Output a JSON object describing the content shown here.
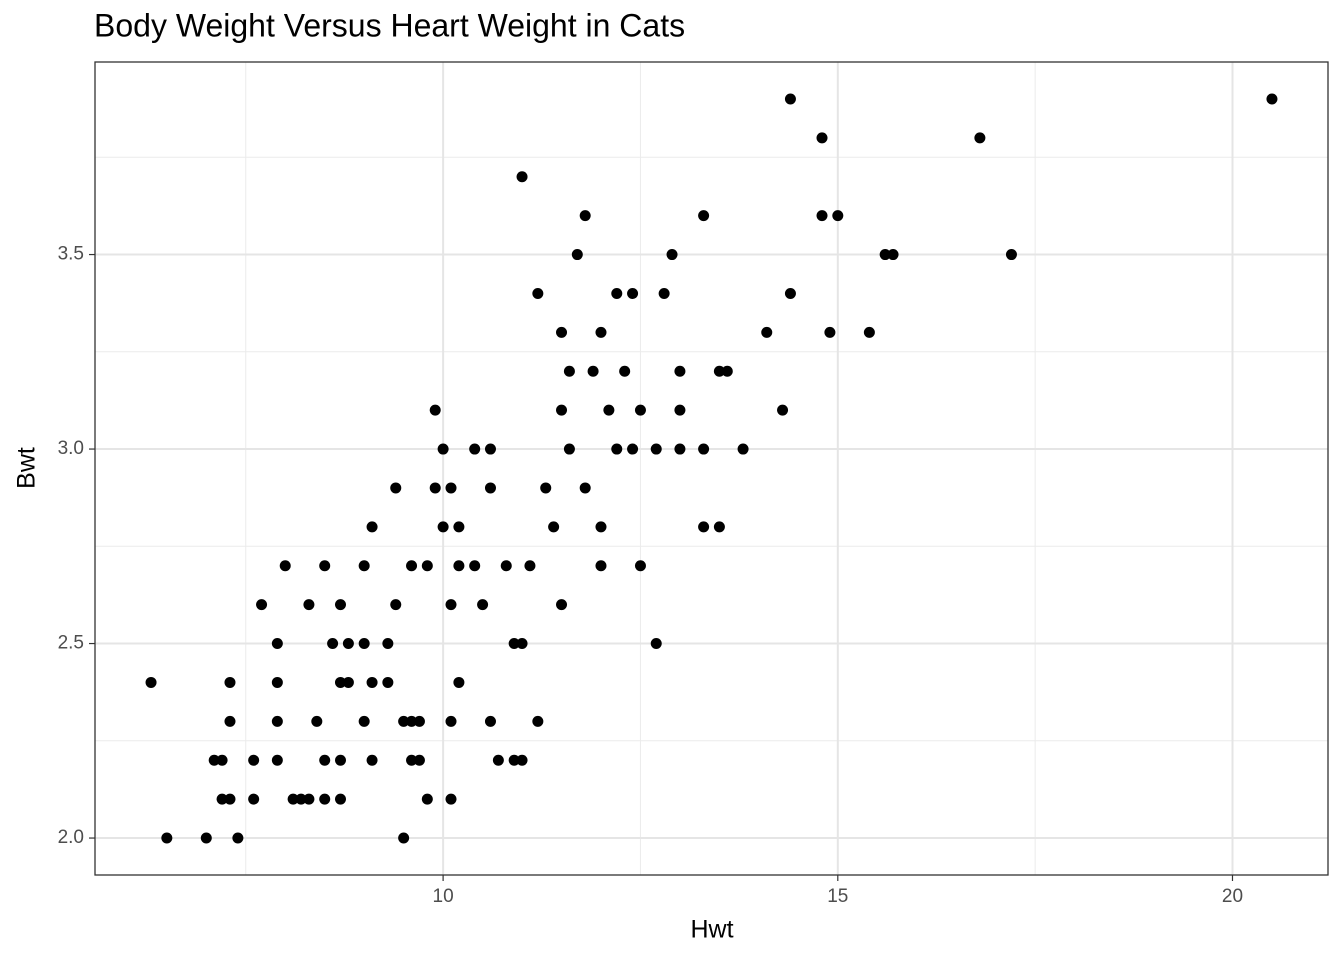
{
  "chart_data": {
    "type": "scatter",
    "title": "Body Weight Versus Heart Weight in Cats",
    "x_label": "Hwt",
    "y_label": "Bwt",
    "x": [
      6.5,
      7.0,
      7.4,
      9.5,
      7.2,
      7.3,
      7.6,
      8.1,
      8.2,
      8.3,
      8.5,
      8.7,
      9.8,
      10.1,
      7.1,
      7.2,
      7.6,
      7.9,
      8.5,
      8.7,
      9.1,
      9.6,
      9.7,
      10.7,
      10.9,
      11.0,
      7.3,
      7.9,
      8.4,
      9.0,
      9.5,
      9.6,
      9.7,
      10.1,
      10.6,
      11.2,
      6.3,
      7.3,
      7.9,
      8.7,
      8.8,
      9.1,
      9.3,
      10.2,
      7.9,
      8.6,
      8.8,
      9.0,
      9.3,
      10.9,
      11.0,
      12.7,
      7.7,
      8.3,
      8.7,
      9.4,
      10.1,
      10.5,
      11.5,
      8.0,
      8.5,
      9.0,
      9.6,
      9.8,
      10.2,
      10.4,
      10.8,
      11.1,
      12.0,
      12.5,
      9.1,
      10.0,
      10.2,
      11.4,
      12.0,
      13.3,
      13.5,
      9.4,
      9.9,
      10.1,
      10.6,
      11.3,
      11.8,
      10.0,
      10.4,
      10.6,
      11.6,
      12.2,
      12.4,
      12.7,
      13.0,
      13.3,
      13.8,
      9.9,
      11.5,
      12.1,
      12.5,
      13.0,
      14.3,
      11.6,
      11.9,
      12.3,
      13.0,
      13.5,
      13.6,
      11.5,
      12.0,
      14.1,
      14.9,
      15.4,
      11.2,
      12.2,
      12.4,
      12.8,
      14.4,
      11.7,
      12.9,
      15.6,
      15.7,
      17.2,
      11.8,
      13.3,
      14.8,
      15.0,
      11.0,
      14.8,
      16.8,
      14.4,
      20.5
    ],
    "y": [
      2.0,
      2.0,
      2.0,
      2.0,
      2.1,
      2.1,
      2.1,
      2.1,
      2.1,
      2.1,
      2.1,
      2.1,
      2.1,
      2.1,
      2.2,
      2.2,
      2.2,
      2.2,
      2.2,
      2.2,
      2.2,
      2.2,
      2.2,
      2.2,
      2.2,
      2.2,
      2.3,
      2.3,
      2.3,
      2.3,
      2.3,
      2.3,
      2.3,
      2.3,
      2.3,
      2.3,
      2.4,
      2.4,
      2.4,
      2.4,
      2.4,
      2.4,
      2.4,
      2.4,
      2.5,
      2.5,
      2.5,
      2.5,
      2.5,
      2.5,
      2.5,
      2.5,
      2.6,
      2.6,
      2.6,
      2.6,
      2.6,
      2.6,
      2.6,
      2.7,
      2.7,
      2.7,
      2.7,
      2.7,
      2.7,
      2.7,
      2.7,
      2.7,
      2.7,
      2.7,
      2.8,
      2.8,
      2.8,
      2.8,
      2.8,
      2.8,
      2.8,
      2.9,
      2.9,
      2.9,
      2.9,
      2.9,
      2.9,
      3.0,
      3.0,
      3.0,
      3.0,
      3.0,
      3.0,
      3.0,
      3.0,
      3.0,
      3.0,
      3.1,
      3.1,
      3.1,
      3.1,
      3.1,
      3.1,
      3.2,
      3.2,
      3.2,
      3.2,
      3.2,
      3.2,
      3.3,
      3.3,
      3.3,
      3.3,
      3.3,
      3.4,
      3.4,
      3.4,
      3.4,
      3.4,
      3.5,
      3.5,
      3.5,
      3.5,
      3.5,
      3.6,
      3.6,
      3.6,
      3.6,
      3.7,
      3.8,
      3.8,
      3.9,
      3.9
    ],
    "color": "#000000",
    "xlim": [
      5.59,
      21.21
    ],
    "ylim": [
      1.905,
      3.995
    ],
    "xticks": [
      10,
      15,
      20
    ],
    "yticks": [
      {
        "value": 2,
        "label": "2.0"
      },
      2.5,
      {
        "value": 3,
        "label": "3.0"
      },
      3.5
    ],
    "x_minor_grid": [
      7.5,
      12.5,
      17.5
    ],
    "y_minor_grid": [
      2.25,
      2.75,
      3.25,
      3.75
    ],
    "grid": true
  }
}
